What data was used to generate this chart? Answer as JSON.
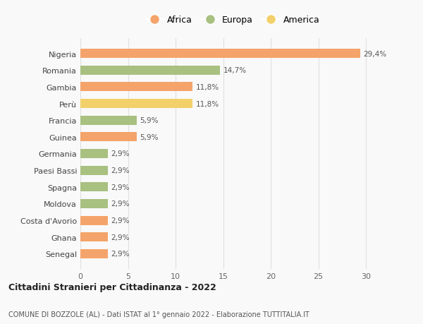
{
  "categories": [
    "Nigeria",
    "Romania",
    "Gambia",
    "Perù",
    "Francia",
    "Guinea",
    "Germania",
    "Paesi Bassi",
    "Spagna",
    "Moldova",
    "Costa d'Avorio",
    "Ghana",
    "Senegal"
  ],
  "values": [
    29.4,
    14.7,
    11.8,
    11.8,
    5.9,
    5.9,
    2.9,
    2.9,
    2.9,
    2.9,
    2.9,
    2.9,
    2.9
  ],
  "labels": [
    "29,4%",
    "14,7%",
    "11,8%",
    "11,8%",
    "5,9%",
    "5,9%",
    "2,9%",
    "2,9%",
    "2,9%",
    "2,9%",
    "2,9%",
    "2,9%",
    "2,9%"
  ],
  "continents": [
    "Africa",
    "Europa",
    "Africa",
    "America",
    "Europa",
    "Africa",
    "Europa",
    "Europa",
    "Europa",
    "Europa",
    "Africa",
    "Africa",
    "Africa"
  ],
  "colors": {
    "Africa": "#F4A46A",
    "Europa": "#A8C080",
    "America": "#F2D06A"
  },
  "legend_order": [
    "Africa",
    "Europa",
    "America"
  ],
  "title1": "Cittadini Stranieri per Cittadinanza - 2022",
  "title2": "COMUNE DI BOZZOLE (AL) - Dati ISTAT al 1° gennaio 2022 - Elaborazione TUTTITALIA.IT",
  "xlim": [
    0,
    32
  ],
  "xticks": [
    0,
    5,
    10,
    15,
    20,
    25,
    30
  ],
  "background_color": "#f9f9f9",
  "grid_color": "#e0e0e0",
  "bar_height": 0.55
}
